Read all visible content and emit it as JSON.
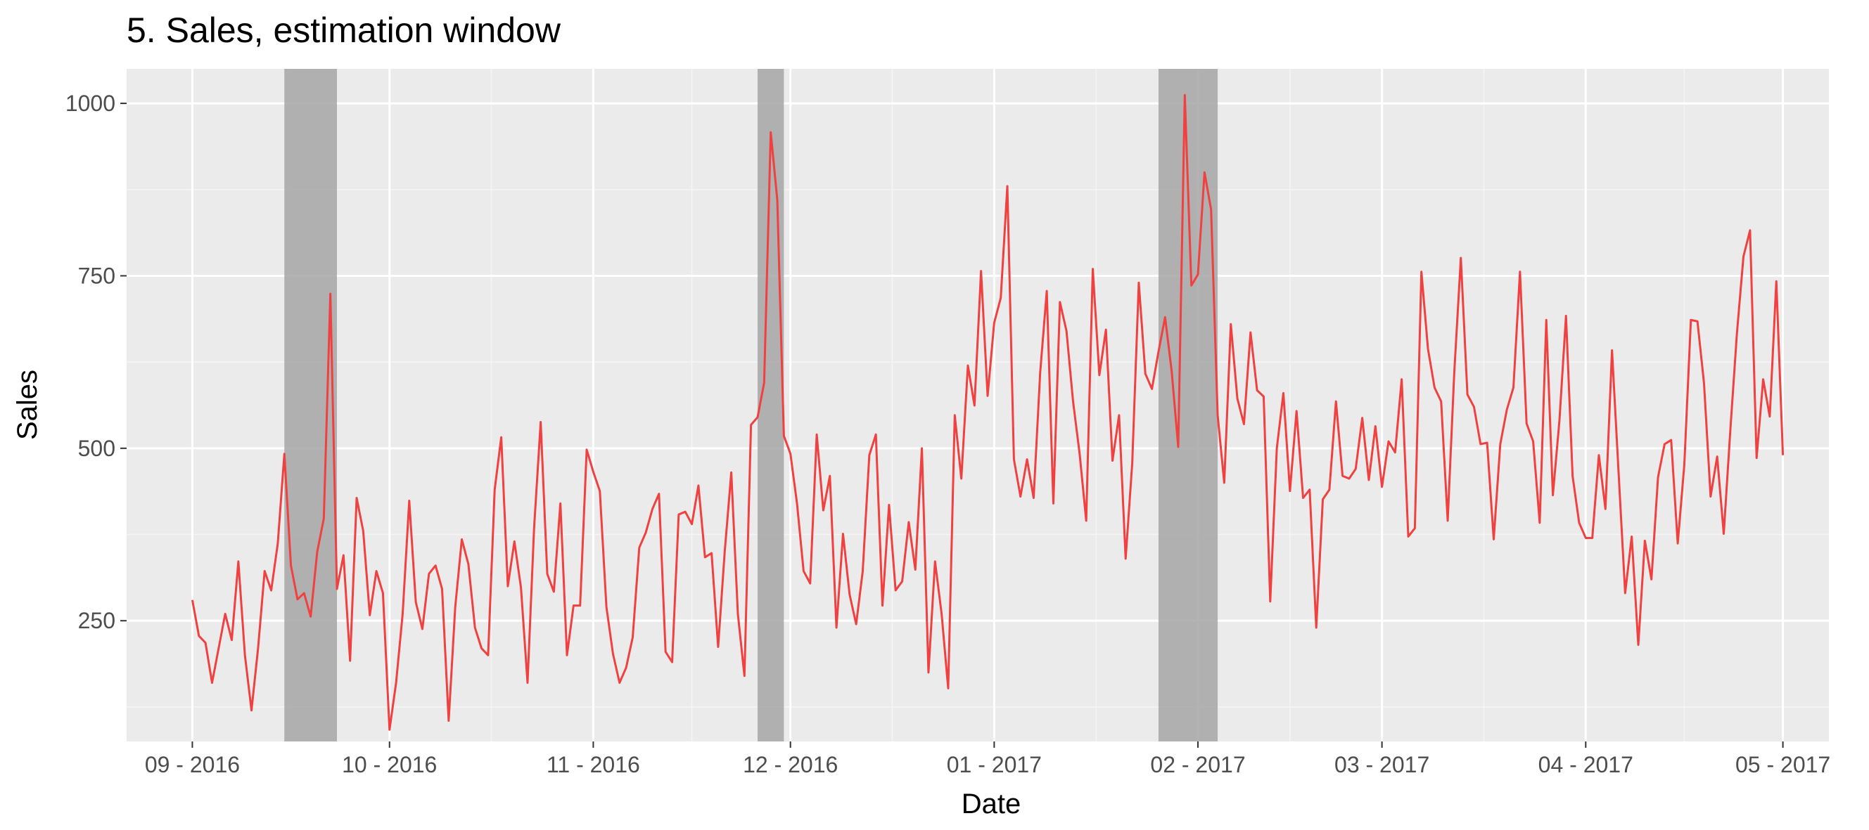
{
  "chart_data": {
    "type": "line",
    "title": "5. Sales, estimation window",
    "xlabel": "Date",
    "ylabel": "Sales",
    "x_start": "2016-09-01",
    "x_range": [
      "2016-08-22",
      "2017-05-08"
    ],
    "ylim": [
      75,
      1050
    ],
    "y_ticks": [
      250,
      500,
      750,
      1000
    ],
    "y_tick_labels": [
      "250",
      "500",
      "750",
      "1000"
    ],
    "x_ticks": [
      "2016-09-01",
      "2016-10-01",
      "2016-11-01",
      "2016-12-01",
      "2017-01-01",
      "2017-02-01",
      "2017-03-01",
      "2017-04-01",
      "2017-05-01"
    ],
    "x_tick_labels": [
      "09 - 2016",
      "10 - 2016",
      "11 - 2016",
      "12 - 2016",
      "01 - 2017",
      "02 - 2017",
      "03 - 2017",
      "04 - 2017",
      "05 - 2017"
    ],
    "grid": true,
    "line_color": "#f04040",
    "shade_color": "#a6a6a6",
    "panel_background": "#ebebeb",
    "shaded_windows": [
      {
        "start": "2016-09-15",
        "end": "2016-09-23"
      },
      {
        "start": "2016-11-26",
        "end": "2016-11-30"
      },
      {
        "start": "2017-01-26",
        "end": "2017-02-04"
      }
    ],
    "series": [
      {
        "values": [
          280,
          228,
          218,
          160,
          210,
          260,
          222,
          336,
          200,
          120,
          210,
          322,
          294,
          362,
          492,
          330,
          281,
          290,
          256,
          350,
          398,
          724,
          296,
          345,
          192,
          428,
          380,
          258,
          322,
          290,
          92,
          160,
          260,
          424,
          277,
          238,
          318,
          330,
          296,
          105,
          270,
          368,
          332,
          240,
          210,
          200,
          440,
          516,
          300,
          365,
          298,
          160,
          385,
          538,
          318,
          292,
          420,
          200,
          272,
          272,
          498,
          466,
          438,
          270,
          202,
          160,
          182,
          226,
          356,
          378,
          412,
          434,
          205,
          190,
          404,
          408,
          390,
          446,
          342,
          348,
          212,
          350,
          465,
          260,
          170,
          534,
          545,
          595,
          958,
          860,
          518,
          492,
          420,
          322,
          304,
          520,
          410,
          460,
          240,
          376,
          288,
          245,
          322,
          490,
          520,
          272,
          418,
          294,
          307,
          393,
          324,
          500,
          175,
          336,
          260,
          152,
          548,
          456,
          620,
          562,
          757,
          576,
          682,
          718,
          880,
          484,
          430,
          484,
          428,
          610,
          728,
          420,
          712,
          670,
          568,
          492,
          395,
          760,
          606,
          672,
          482,
          548,
          340,
          478,
          740,
          608,
          586,
          640,
          690,
          612,
          502,
          1012,
          736,
          752,
          900,
          846,
          548,
          450,
          680,
          572,
          535,
          668,
          584,
          575,
          278,
          500,
          580,
          438,
          554,
          428,
          440,
          240,
          426,
          440,
          568,
          460,
          456,
          470,
          544,
          454,
          532,
          444,
          510,
          494,
          600,
          372,
          384,
          756,
          644,
          588,
          568,
          395,
          610,
          776,
          578,
          560,
          506,
          508,
          368,
          506,
          556,
          588,
          756,
          536,
          510,
          392,
          686,
          432,
          540,
          692,
          460,
          392,
          370,
          370,
          490,
          412,
          642,
          465,
          290,
          372,
          215,
          366,
          310,
          458,
          506,
          512,
          362,
          476,
          686,
          684,
          594,
          430,
          488,
          376,
          526,
          666,
          778,
          816,
          486,
          600,
          546,
          742,
          490
        ]
      }
    ]
  }
}
